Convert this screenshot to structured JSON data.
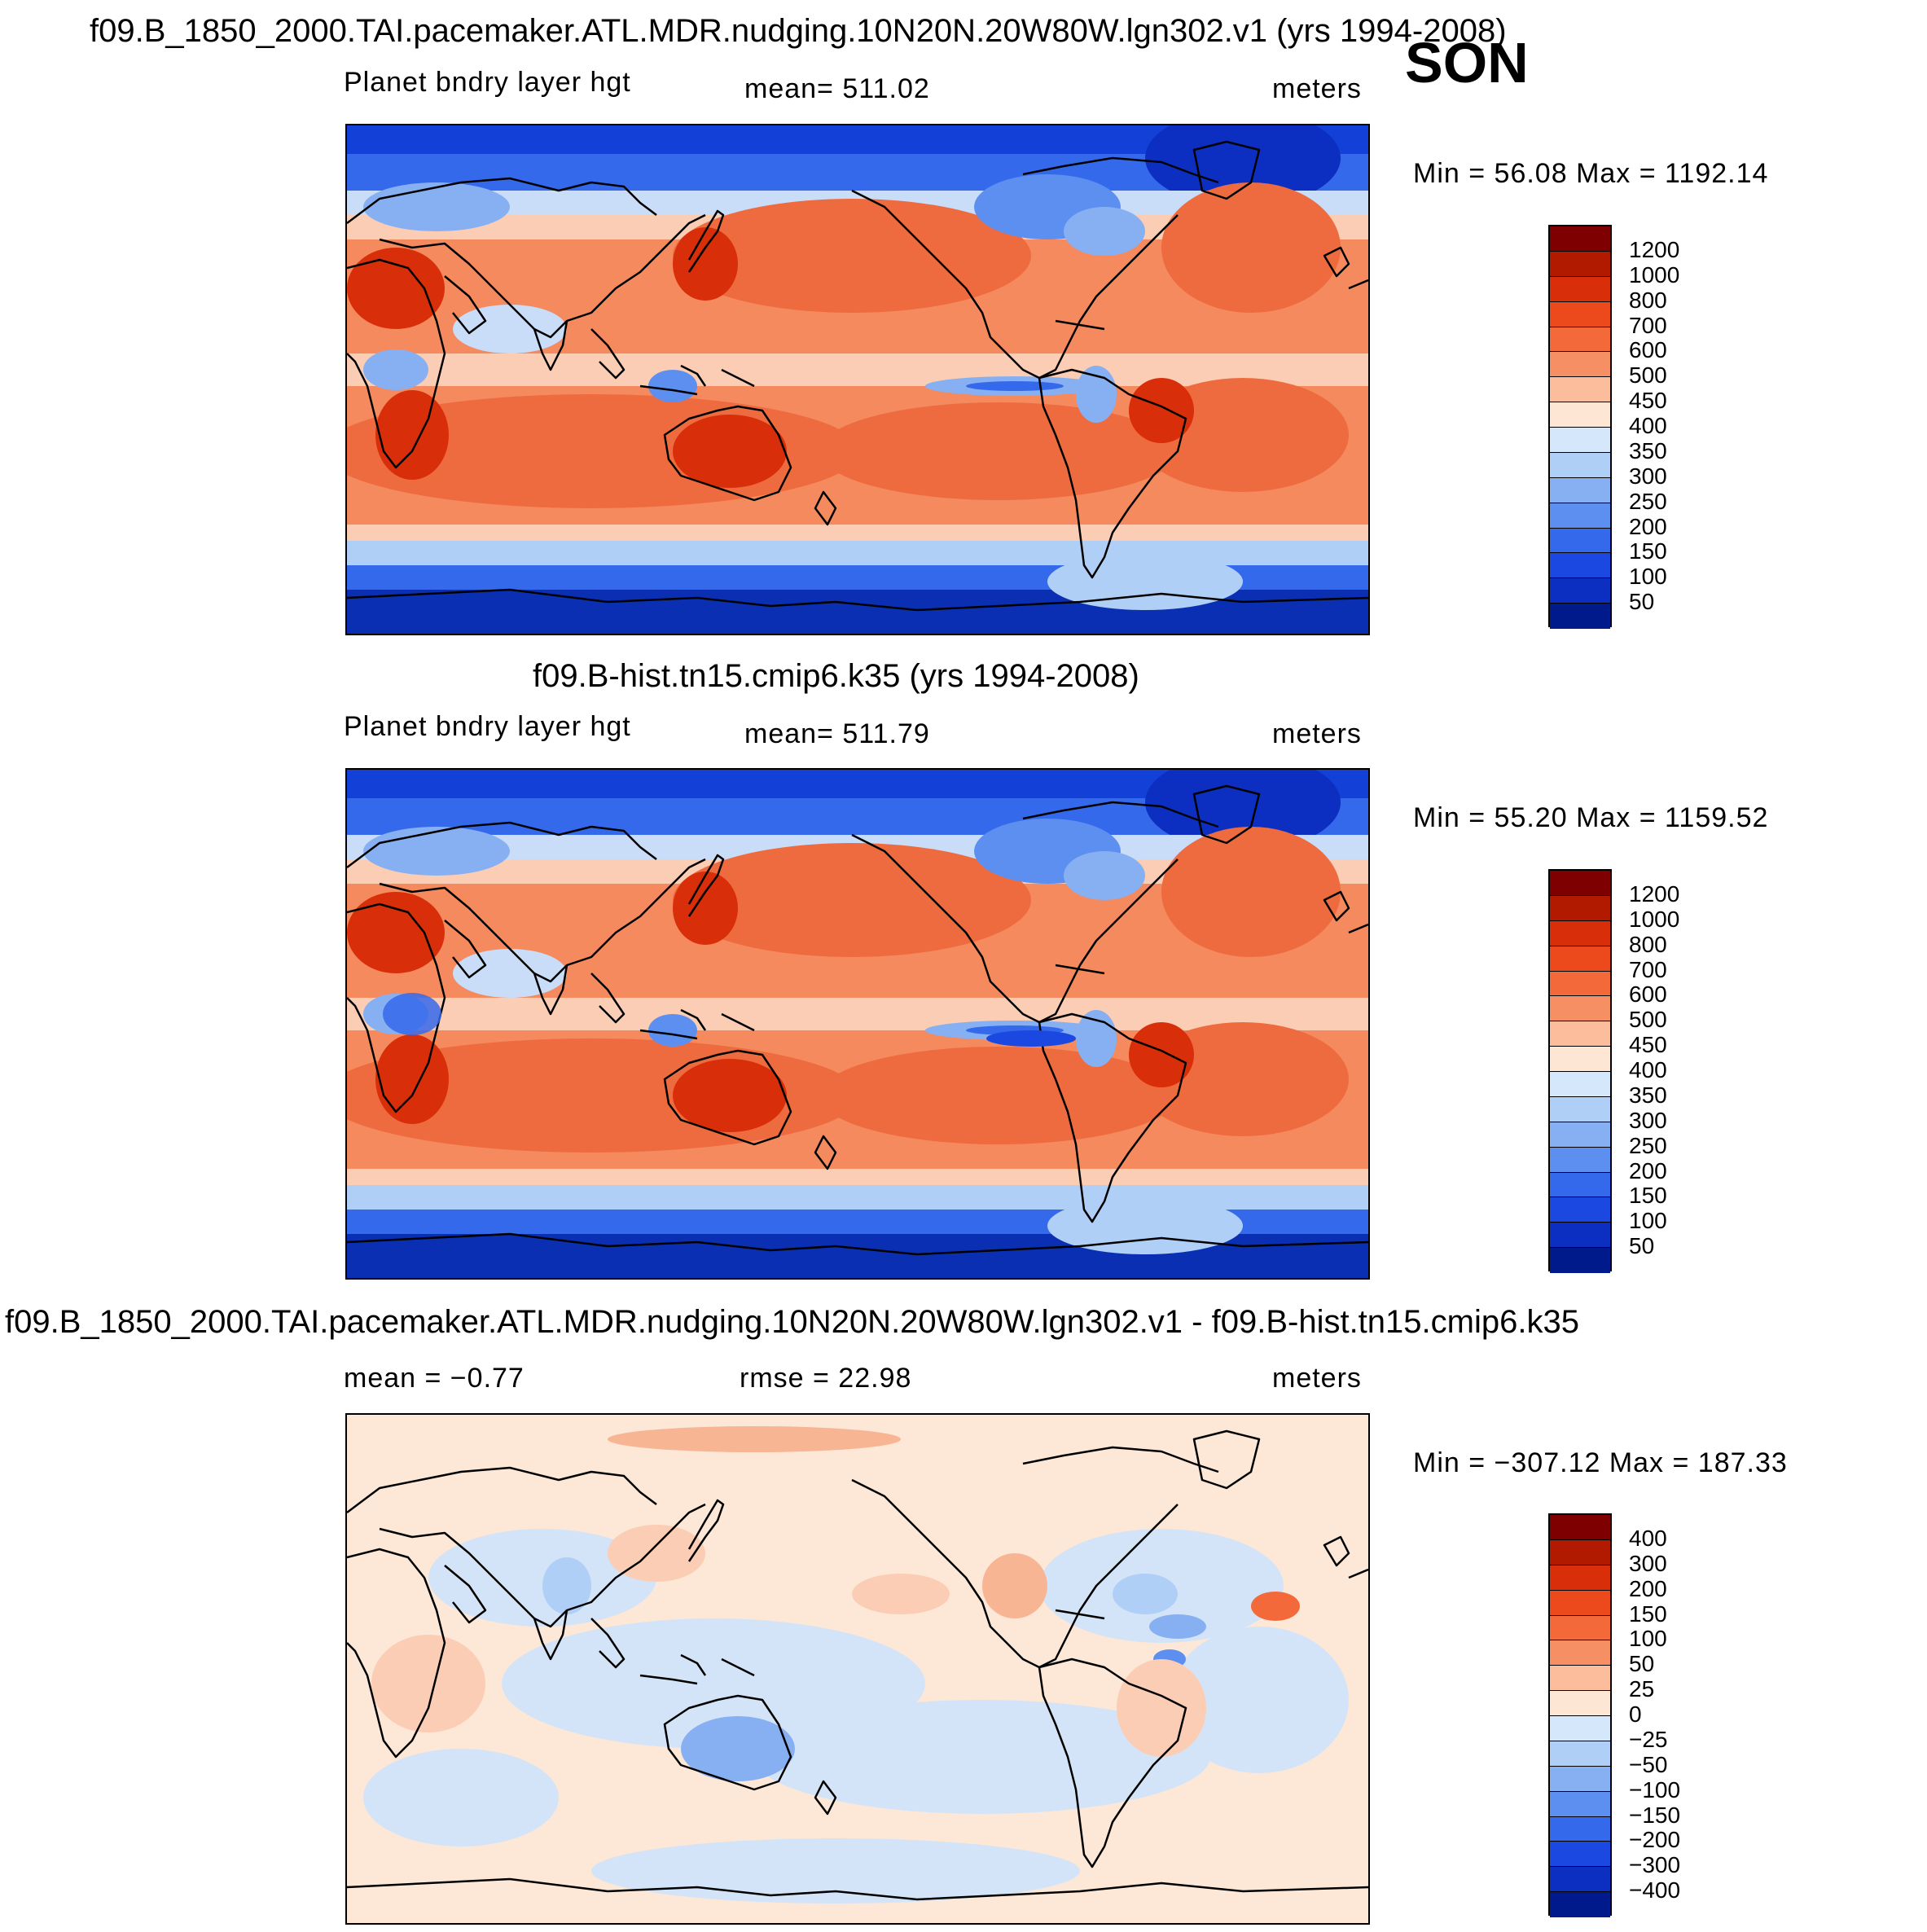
{
  "season": "SON",
  "units": "meters",
  "field_label": "Planet bndry layer hgt",
  "panels": [
    {
      "id": "test",
      "title": "f09.B_1850_2000.TAI.pacemaker.ATL.MDR.nudging.10N20N.20W80W.lgn302.v1 (yrs 1994-2008)",
      "left_label": "Planet bndry layer hgt",
      "center_label": "mean=  511.02",
      "right_label": "meters",
      "minmax": "Min =   56.08  Max =  1192.14"
    },
    {
      "id": "control",
      "title": "f09.B-hist.tn15.cmip6.k35 (yrs 1994-2008)",
      "left_label": "Planet bndry layer hgt",
      "center_label": "mean=  511.79",
      "right_label": "meters",
      "minmax": "Min =   55.20  Max =  1159.52"
    },
    {
      "id": "difference",
      "title": "f09.B_1850_2000.TAI.pacemaker.ATL.MDR.nudging.10N20N.20W80W.lgn302.v1 - f09.B-hist.tn15.cmip6.k35",
      "left_label": "mean =   −0.77",
      "center_label": "rmse =   22.98",
      "right_label": "meters",
      "minmax": "Min = −307.12  Max =  187.33"
    }
  ],
  "colorbars": {
    "abs": {
      "labels": [
        "1200",
        "1000",
        "800",
        "700",
        "600",
        "500",
        "450",
        "400",
        "350",
        "300",
        "250",
        "200",
        "150",
        "100",
        "50"
      ],
      "colors": [
        "#7f0000",
        "#b21a00",
        "#d92e0a",
        "#ec4a1c",
        "#f4693a",
        "#f78f64",
        "#fbbd9c",
        "#fde6d4",
        "#d5e7fb",
        "#b0cff7",
        "#87b0f2",
        "#5c8ff0",
        "#3569ec",
        "#1a48e0",
        "#0c2fc2",
        "#001a8c"
      ]
    },
    "diff": {
      "labels": [
        "400",
        "300",
        "200",
        "150",
        "100",
        "50",
        "25",
        "0",
        "−25",
        "−50",
        "−100",
        "−150",
        "−200",
        "−300",
        "−400"
      ],
      "colors": [
        "#7f0000",
        "#b21a00",
        "#d92e0a",
        "#ec4a1c",
        "#f4693a",
        "#f78f64",
        "#fbbd9c",
        "#fde6d4",
        "#d5e7fb",
        "#b0cff7",
        "#87b0f2",
        "#5c8ff0",
        "#3569ec",
        "#1a48e0",
        "#0c2fc2",
        "#001a8c"
      ]
    }
  },
  "legend": {
    "colors": {
      "ocean_mid": "#f48a5e",
      "ocean_high": "#ee6b3f",
      "polar_low": "#1340d6",
      "polar_very_low": "#0a2fb3",
      "band_light": "#fbcdb4",
      "band_blue_light": "#c9ddf8",
      "diff_bg": "#fde7d6",
      "diff_blue": "#d4e4f8",
      "diff_pos": "#f7b594",
      "land_line": "#000000"
    }
  }
}
